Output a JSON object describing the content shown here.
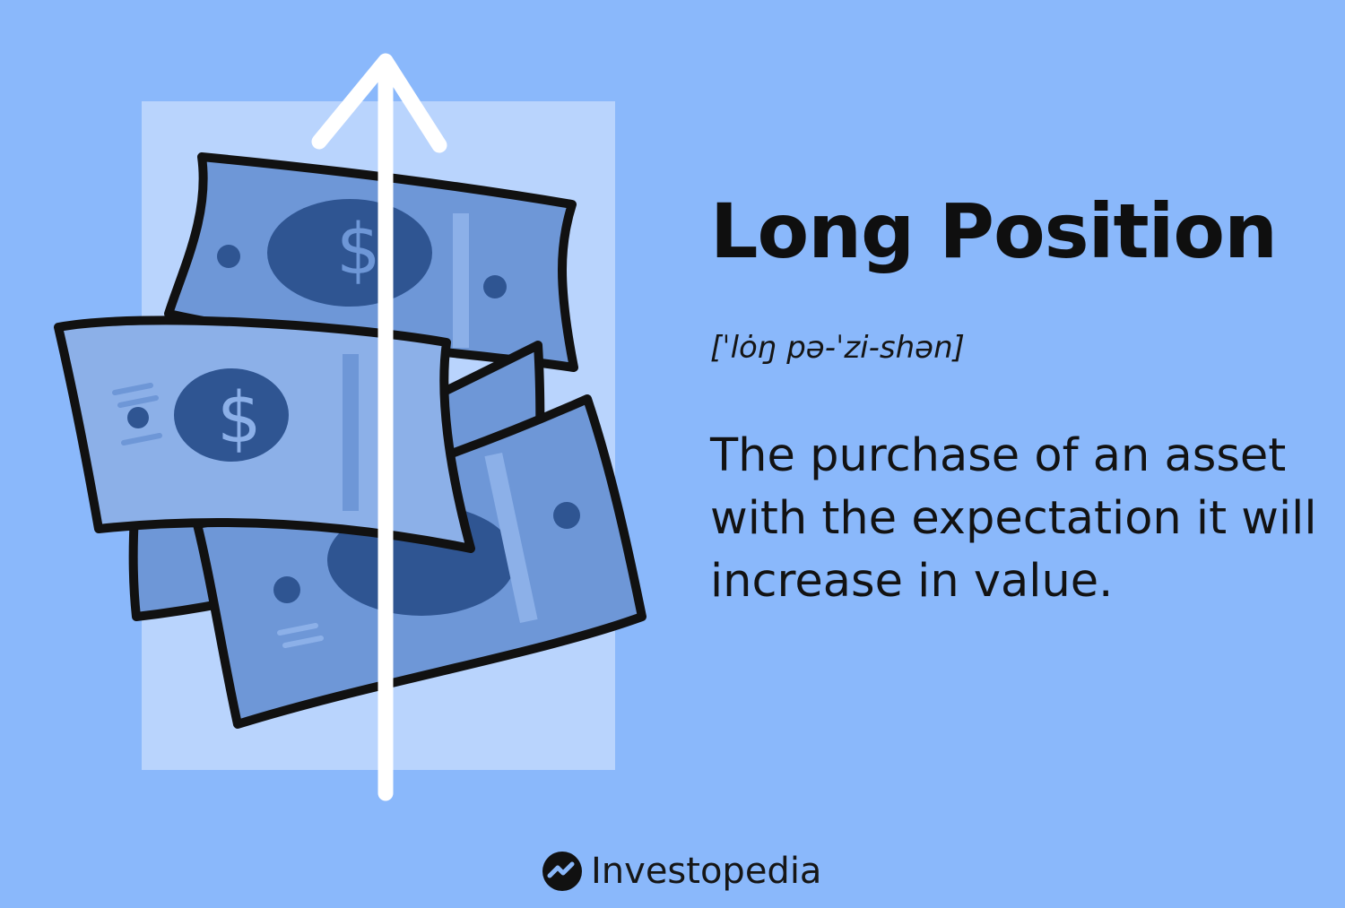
{
  "card": {
    "term": "Long Position",
    "pronunciation": "[ˈlȯŋ pə-ˈzi-shən]",
    "definition": "The purchase of an asset with the expectation it will increase in value."
  },
  "brand": {
    "name": "Investopedia",
    "icon": "investopedia-logo-icon"
  },
  "illustration": {
    "icons": [
      "dollar-bills-icon",
      "up-arrow-icon"
    ]
  },
  "colors": {
    "background": "#8ab8fb",
    "panel": "#b9d4fd",
    "bill_fill": "#6e97d7",
    "bill_light": "#8cb0e8",
    "bill_dark": "#2f5592",
    "outline": "#111111",
    "arrow": "#ffffff"
  }
}
